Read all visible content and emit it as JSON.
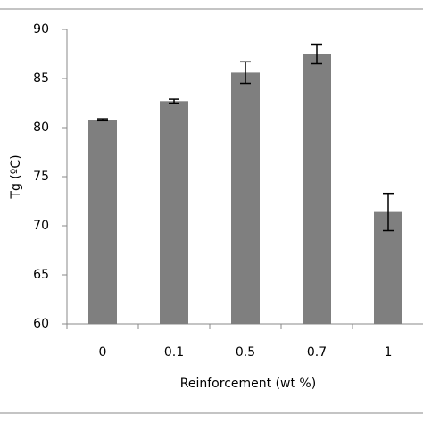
{
  "chart_data": {
    "type": "bar",
    "x_label": "Reinforcement (wt %)",
    "y_label": "Tg (ºC)",
    "categories": [
      "0",
      "0.1",
      "0.5",
      "0.7",
      "1"
    ],
    "values": [
      80.8,
      82.7,
      85.6,
      87.5,
      71.4
    ],
    "errors": [
      0.1,
      0.2,
      1.1,
      1.0,
      1.9
    ],
    "color": "#7f7f7f",
    "ylim": [
      60,
      90
    ],
    "yticks": [
      60,
      65,
      70,
      75,
      80,
      85,
      90
    ],
    "grid": false
  }
}
